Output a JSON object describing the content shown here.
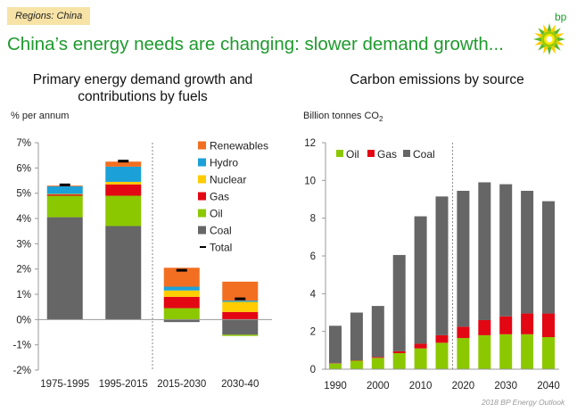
{
  "header": {
    "region_tag": "Regions: China",
    "title": "China’s energy needs are changing: slower demand growth...",
    "logo_text": "bp"
  },
  "footer": "2018 BP Energy Outlook",
  "colors": {
    "Renewables": "#f26f21",
    "Hydro": "#1ba1d8",
    "Nuclear": "#ffcc00",
    "Gas": "#e30613",
    "Oil": "#8cc800",
    "Coal": "#666666",
    "Total": "#000000"
  },
  "chart_data": [
    {
      "type": "bar",
      "stacked": true,
      "title": "Primary energy demand growth and contributions by fuels",
      "ylabel": "% per annum",
      "xlabel": "",
      "ylim": [
        -2,
        7
      ],
      "yticks": [
        "-2%",
        "-1%",
        "0%",
        "1%",
        "2%",
        "3%",
        "4%",
        "5%",
        "6%",
        "7%"
      ],
      "categories": [
        "1975-1995",
        "1995-2015",
        "2015-2030",
        "2030-40"
      ],
      "series": [
        {
          "name": "Coal",
          "values": [
            4.05,
            3.7,
            -0.1,
            -0.6
          ]
        },
        {
          "name": "Oil",
          "values": [
            0.85,
            1.2,
            0.45,
            -0.05
          ]
        },
        {
          "name": "Gas",
          "values": [
            0.05,
            0.45,
            0.45,
            0.3
          ]
        },
        {
          "name": "Nuclear",
          "values": [
            0.02,
            0.1,
            0.25,
            0.4
          ]
        },
        {
          "name": "Hydro",
          "values": [
            0.3,
            0.6,
            0.15,
            0.05
          ]
        },
        {
          "name": "Renewables",
          "values": [
            0.03,
            0.2,
            0.75,
            0.75
          ]
        }
      ],
      "total": {
        "name": "Total",
        "values": [
          5.33,
          6.27,
          1.95,
          0.82
        ]
      },
      "legend": [
        "Renewables",
        "Hydro",
        "Nuclear",
        "Gas",
        "Oil",
        "Coal",
        "Total"
      ],
      "legend_position": "top-right",
      "divider_after_category": 1
    },
    {
      "type": "bar",
      "stacked": true,
      "title": "Carbon emissions by source",
      "ylabel": "Billion tonnes CO2",
      "ylabel_main": "Billion tonnes CO",
      "ylabel_sub": "2",
      "xlabel": "",
      "ylim": [
        0,
        12
      ],
      "yticks": [
        "0",
        "2",
        "4",
        "6",
        "8",
        "10",
        "12"
      ],
      "x": [
        1990,
        1995,
        2000,
        2005,
        2010,
        2015,
        2020,
        2025,
        2030,
        2035,
        2040
      ],
      "xtick_labels": [
        "1990",
        "2000",
        "2010",
        "2020",
        "2030",
        "2040"
      ],
      "series": [
        {
          "name": "Oil",
          "values": [
            0.3,
            0.45,
            0.6,
            0.85,
            1.1,
            1.4,
            1.65,
            1.8,
            1.85,
            1.85,
            1.7
          ]
        },
        {
          "name": "Gas",
          "values": [
            0.02,
            0.02,
            0.05,
            0.1,
            0.25,
            0.4,
            0.6,
            0.8,
            0.95,
            1.1,
            1.25
          ]
        },
        {
          "name": "Coal",
          "values": [
            1.98,
            2.53,
            2.7,
            5.1,
            6.75,
            7.35,
            7.2,
            7.3,
            7.0,
            6.5,
            5.95
          ]
        }
      ],
      "legend": [
        "Oil",
        "Gas",
        "Coal"
      ],
      "legend_position": "top-left",
      "divider_after_x": 2015
    }
  ]
}
